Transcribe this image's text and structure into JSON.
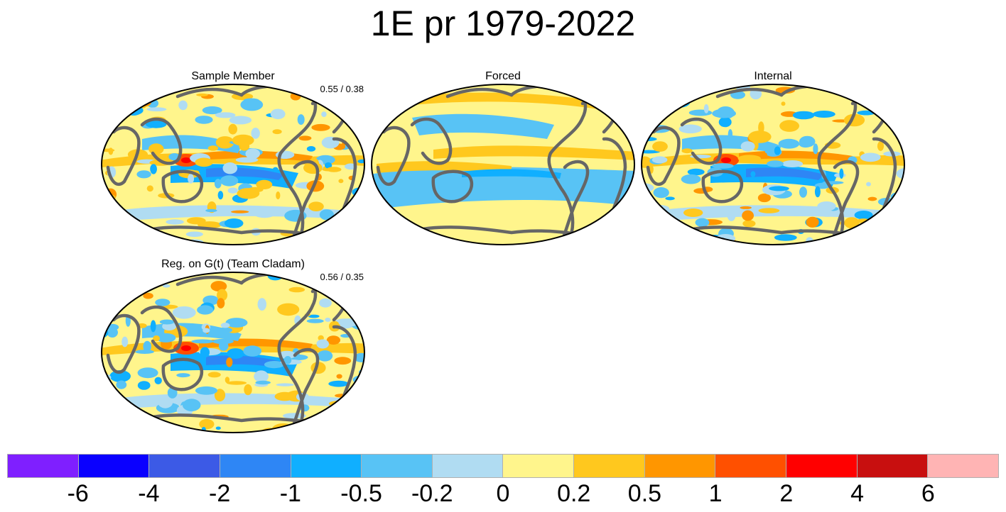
{
  "title": "1E pr 1979-2022",
  "chart_data": {
    "type": "heatmap",
    "projection": "Robinson (Pacific-centered)",
    "variable": "pr",
    "period": "1979-2022",
    "panels": [
      {
        "id": "sample",
        "title": "Sample Member",
        "stat": "0.55 / 0.38",
        "pattern": "mixed"
      },
      {
        "id": "forced",
        "title": "Forced",
        "stat": "",
        "pattern": "smooth"
      },
      {
        "id": "internal",
        "title": "Internal",
        "stat": "",
        "pattern": "mixed"
      },
      {
        "id": "regression",
        "title": "Reg. on G(t) (Team Cladam)",
        "stat": "0.56 / 0.35",
        "pattern": "mixed"
      }
    ],
    "colorbar": {
      "levels": [
        "-6",
        "-4",
        "-2",
        "-1",
        "-0.5",
        "-0.2",
        "0",
        "0.2",
        "0.5",
        "1",
        "2",
        "4",
        "6"
      ],
      "colors": [
        "#7F1FFF",
        "#0A00FF",
        "#3C5AE6",
        "#2E86F5",
        "#10AFFF",
        "#58C3F5",
        "#B0DCF2",
        "#FFF58C",
        "#FFC81E",
        "#FF9600",
        "#FF5000",
        "#FF0000",
        "#C80F0F",
        "#FFB4B4"
      ]
    }
  }
}
